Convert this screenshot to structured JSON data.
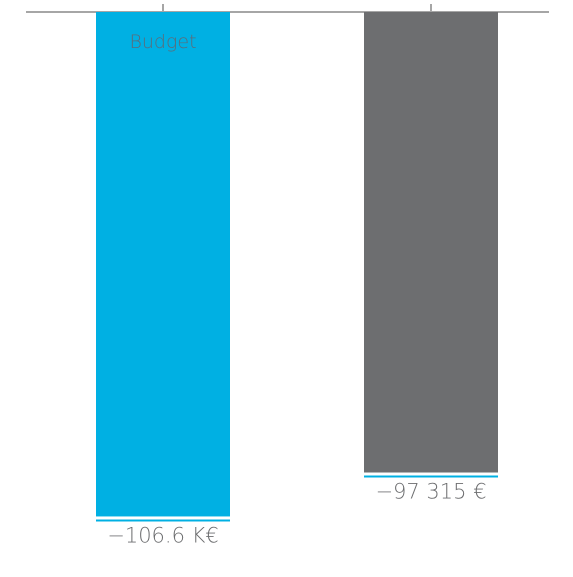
{
  "chart_data": {
    "type": "bar",
    "orientation": "vertical-negative",
    "categories": [
      "Budget",
      ""
    ],
    "values": [
      -106600,
      -97315
    ],
    "value_labels": [
      "−106.6 K€",
      "−97 315 €"
    ],
    "bar_inner_labels": [
      "Budget",
      ""
    ],
    "ylim": [
      -112000,
      0
    ],
    "colors": {
      "bar_1": "#00b0e3",
      "bar_2": "#6d6e70",
      "axis": "#a6a6a6",
      "bar_underline": "#00b0e3",
      "bar_inner_label": "#5b6c7a",
      "value_label": "#6d6e70"
    },
    "grid": false,
    "legend": "none"
  }
}
